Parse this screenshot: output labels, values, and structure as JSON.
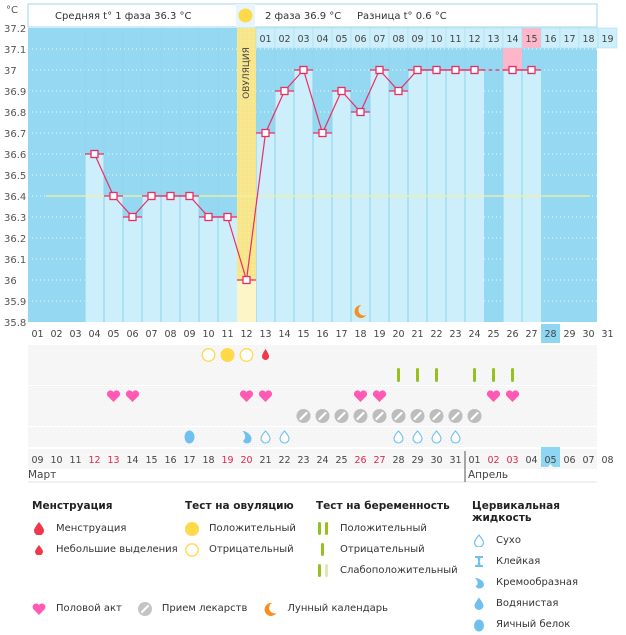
{
  "header": {
    "unit_label": "°C",
    "phase1_label": "Средняя t° 1 фаза 36.3 °C",
    "phase2_label": "2 фаза 36.9 °C",
    "difference_label": "Разница t° 0.6 °C",
    "ovulation_label": "ОВУЛЯЦИЯ"
  },
  "chart_data": {
    "type": "line",
    "title": "",
    "ylabel": "°C",
    "ylim": [
      35.8,
      37.2
    ],
    "yticks": [
      35.8,
      35.9,
      36,
      36.1,
      36.2,
      36.3,
      36.4,
      36.5,
      36.6,
      36.7,
      36.8,
      36.9,
      37,
      37.1,
      37.2
    ],
    "ytick_labels": [
      "35.8",
      "35.9",
      "36",
      "36.1",
      "36.2",
      "36.3",
      "36.4",
      "36.5",
      "36.6",
      "36.7",
      "36.8",
      "36.9",
      "37",
      "37.1",
      "37.2"
    ],
    "cycle_days": [
      "01",
      "02",
      "03",
      "04",
      "05",
      "06",
      "07",
      "08",
      "09",
      "10",
      "11",
      "12",
      "13",
      "14",
      "15",
      "16",
      "17",
      "18",
      "19",
      "20",
      "21",
      "22",
      "23",
      "24",
      "25",
      "26",
      "27",
      "28",
      "29",
      "30",
      "31"
    ],
    "calendar_dates": [
      "09",
      "10",
      "11",
      "12",
      "13",
      "14",
      "15",
      "16",
      "17",
      "18",
      "19",
      "20",
      "21",
      "22",
      "23",
      "24",
      "25",
      "26",
      "27",
      "28",
      "29",
      "30",
      "31",
      "01",
      "02",
      "03",
      "04",
      "05",
      "06",
      "07",
      "08"
    ],
    "weekend_dates_highlight": [
      4,
      5,
      11,
      12,
      18,
      19,
      25,
      26
    ],
    "months": [
      {
        "label": "Март",
        "start_index": 1
      },
      {
        "label": "Апрель",
        "start_index": 24
      }
    ],
    "today_cycle_day_index": 28,
    "today_date_label": "05",
    "phase2_day_labels": [
      "01",
      "02",
      "03",
      "04",
      "05",
      "06",
      "07",
      "08",
      "09",
      "10",
      "11",
      "12",
      "13",
      "14",
      "15",
      "16",
      "17",
      "18",
      "19"
    ],
    "phase2_highlight_day": "15",
    "ovulation_day": 12,
    "coverline": 36.4,
    "series": [
      {
        "name": "Базальная температура",
        "days": [
          4,
          5,
          6,
          7,
          8,
          9,
          10,
          11,
          12,
          13,
          14,
          15,
          16,
          17,
          18,
          19,
          20,
          21,
          22,
          23,
          24,
          26,
          27
        ],
        "values": [
          36.6,
          36.4,
          36.3,
          36.4,
          36.4,
          36.4,
          36.3,
          36.3,
          36.0,
          36.7,
          36.9,
          37.0,
          36.7,
          36.9,
          36.8,
          37.0,
          36.9,
          37.0,
          37.0,
          37.0,
          37.0,
          37.0,
          37.0
        ],
        "dashed_gap_after_day": 24
      }
    ],
    "moon_day": 18,
    "rows": {
      "ovulation_test": [
        {
          "day": 10,
          "value": "negative"
        },
        {
          "day": 11,
          "value": "positive"
        },
        {
          "day": 12,
          "value": "negative"
        }
      ],
      "menstruation": [
        {
          "day": 13,
          "value": "spotting"
        }
      ],
      "pregnancy_test": [
        {
          "day": 20,
          "value": "negative"
        },
        {
          "day": 21,
          "value": "negative"
        },
        {
          "day": 22,
          "value": "negative"
        },
        {
          "day": 24,
          "value": "negative"
        },
        {
          "day": 25,
          "value": "negative"
        },
        {
          "day": 26,
          "value": "negative"
        }
      ],
      "intercourse": [
        5,
        6,
        12,
        13,
        18,
        19,
        25,
        26
      ],
      "medication": [
        15,
        16,
        17,
        18,
        19,
        20,
        21,
        22,
        23,
        24
      ],
      "cervical_fluid": [
        {
          "day": 9,
          "value": "egg-white"
        },
        {
          "day": 12,
          "value": "creamy"
        },
        {
          "day": 13,
          "value": "dry"
        },
        {
          "day": 14,
          "value": "dry"
        },
        {
          "day": 20,
          "value": "dry"
        },
        {
          "day": 21,
          "value": "dry"
        },
        {
          "day": 22,
          "value": "dry"
        },
        {
          "day": 23,
          "value": "dry"
        }
      ]
    }
  },
  "colors": {
    "plot_bg": "#94d8f2",
    "bar_fill": "#cdeefb",
    "line": "#ea2e62",
    "ovulation": "#f7e58a",
    "coverline": "#f6f0a0",
    "today": "#8fd6f3",
    "highlight_pink": "#ffb6c8",
    "weekend_text": "#e0284f",
    "heart": "#ff5bb5",
    "pill": "#bdbdbd",
    "pregnancy_green": "#95c11f",
    "drop_blue": "#6fc0ee",
    "menstruation_red": "#f0384a",
    "ovu_yellow": "#ffd94a",
    "moon": "#f5901e"
  },
  "legend": {
    "menstruation": {
      "title": "Менструация",
      "items": [
        {
          "icon": "blood-drop-large-icon",
          "label": "Менструация"
        },
        {
          "icon": "blood-drop-small-icon",
          "label": "Небольшие выделения"
        }
      ]
    },
    "ovulation_test": {
      "title": "Тест на овуляцию",
      "items": [
        {
          "icon": "filled-circle-icon",
          "label": "Положительный"
        },
        {
          "icon": "empty-circle-icon",
          "label": "Отрицательный"
        }
      ]
    },
    "pregnancy_test": {
      "title": "Тест на беременность",
      "items": [
        {
          "icon": "double-bar-icon",
          "label": "Положительный"
        },
        {
          "icon": "single-bar-icon",
          "label": "Отрицательный"
        },
        {
          "icon": "faint-double-bar-icon",
          "label": "Слабоположительный"
        }
      ]
    },
    "cervical_fluid": {
      "title": "Цервикальная жидкость",
      "items": [
        {
          "icon": "outline-drop-icon",
          "label": "Сухо"
        },
        {
          "icon": "sticky-icon",
          "label": "Клейкая"
        },
        {
          "icon": "creamy-drop-icon",
          "label": "Кремообразная"
        },
        {
          "icon": "watery-drop-icon",
          "label": "Водянистая"
        },
        {
          "icon": "egg-white-drop-icon",
          "label": "Яичный белок"
        }
      ]
    },
    "other": [
      {
        "icon": "heart-icon",
        "label": "Половой акт"
      },
      {
        "icon": "pill-icon",
        "label": "Прием лекарств"
      },
      {
        "icon": "moon-icon",
        "label": "Лунный календарь"
      }
    ]
  }
}
